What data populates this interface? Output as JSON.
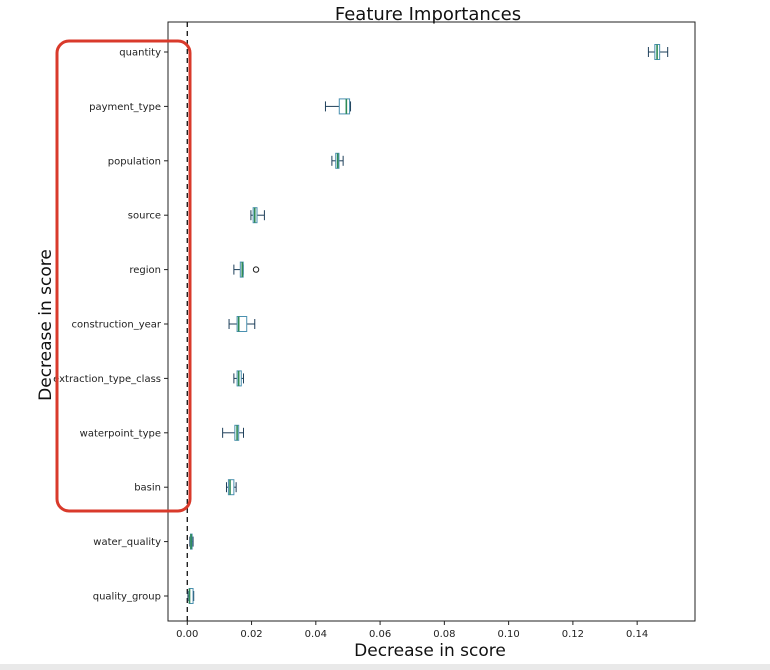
{
  "chart_data": {
    "type": "boxplot",
    "title": "Feature Importances",
    "xlabel": "Decrease in score",
    "ylabel": "Decrease in score",
    "xlim": [
      -0.006,
      0.158
    ],
    "xticks": [
      "0.00",
      "0.02",
      "0.04",
      "0.06",
      "0.08",
      "0.10",
      "0.12",
      "0.14"
    ],
    "xtick_values": [
      0.0,
      0.02,
      0.04,
      0.06,
      0.08,
      0.1,
      0.12,
      0.14
    ],
    "reference_line": {
      "x": 0.0,
      "style": "dashed"
    },
    "highlight": {
      "color": "#d93a2b",
      "covers": [
        "quantity",
        "payment_type",
        "population",
        "source",
        "region",
        "construction_year",
        "extraction_type_class",
        "waterpoint_type",
        "basin"
      ]
    },
    "colors": {
      "box": "#4a90b0",
      "median": "#2e8b57",
      "whisker": "#1e3f5a",
      "frame": "#222222"
    },
    "categories": [
      "quantity",
      "payment_type",
      "population",
      "source",
      "region",
      "construction_year",
      "extraction_type_class",
      "waterpoint_type",
      "basin",
      "water_quality",
      "quality_group"
    ],
    "boxes": [
      {
        "label": "quantity",
        "min": 0.1435,
        "q1": 0.1455,
        "median": 0.1462,
        "q3": 0.147,
        "max": 0.1495,
        "outliers": []
      },
      {
        "label": "payment_type",
        "min": 0.043,
        "q1": 0.0473,
        "median": 0.0495,
        "q3": 0.0505,
        "max": 0.0508,
        "outliers": []
      },
      {
        "label": "population",
        "min": 0.045,
        "q1": 0.0462,
        "median": 0.0468,
        "q3": 0.0472,
        "max": 0.0485,
        "outliers": []
      },
      {
        "label": "source",
        "min": 0.0198,
        "q1": 0.0205,
        "median": 0.021,
        "q3": 0.0217,
        "max": 0.024,
        "outliers": []
      },
      {
        "label": "region",
        "min": 0.0145,
        "q1": 0.0165,
        "median": 0.0171,
        "q3": 0.0174,
        "max": 0.0174,
        "outliers": [
          0.0214
        ]
      },
      {
        "label": "construction_year",
        "min": 0.013,
        "q1": 0.0155,
        "median": 0.016,
        "q3": 0.0185,
        "max": 0.021,
        "outliers": []
      },
      {
        "label": "extraction_type_class",
        "min": 0.0145,
        "q1": 0.0155,
        "median": 0.016,
        "q3": 0.0168,
        "max": 0.0175,
        "outliers": []
      },
      {
        "label": "waterpoint_type",
        "min": 0.011,
        "q1": 0.0148,
        "median": 0.0155,
        "q3": 0.016,
        "max": 0.0175,
        "outliers": []
      },
      {
        "label": "basin",
        "min": 0.0122,
        "q1": 0.0128,
        "median": 0.0133,
        "q3": 0.0145,
        "max": 0.0152,
        "outliers": []
      },
      {
        "label": "water_quality",
        "min": 0.0008,
        "q1": 0.001,
        "median": 0.0012,
        "q3": 0.0015,
        "max": 0.0018,
        "outliers": []
      },
      {
        "label": "quality_group",
        "min": 0.0002,
        "q1": 0.0006,
        "median": 0.0007,
        "q3": 0.0018,
        "max": 0.002,
        "outliers": []
      }
    ],
    "grid": false,
    "legend": "none"
  }
}
